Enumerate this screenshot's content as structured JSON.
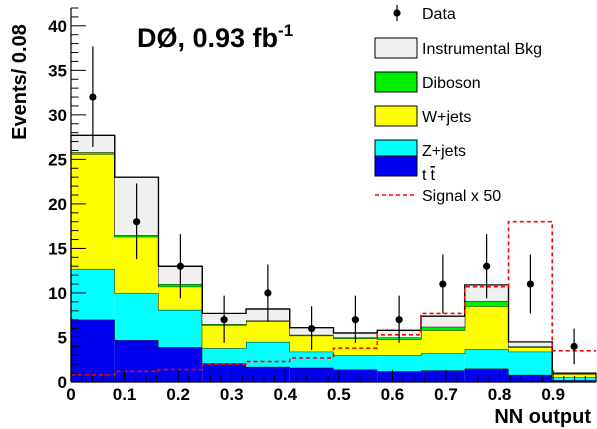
{
  "chart_data": {
    "type": "bar",
    "title": "DØ, 0.93 fb",
    "title_superscript": "-1",
    "xlabel": "NN output",
    "ylabel": "Events/ 0.08",
    "xlim": [
      0,
      0.98
    ],
    "ylim": [
      0,
      42
    ],
    "bin_edges": [
      0.0,
      0.0817,
      0.1633,
      0.245,
      0.3267,
      0.4083,
      0.49,
      0.5717,
      0.6533,
      0.735,
      0.8167,
      0.8983,
      0.98
    ],
    "x_tick_labels": [
      "0",
      "0.1",
      "0.2",
      "0.3",
      "0.4",
      "0.5",
      "0.6",
      "0.7",
      "0.8",
      "0.9"
    ],
    "x_tick_values": [
      0,
      0.1,
      0.2,
      0.3,
      0.4,
      0.5,
      0.6,
      0.7,
      0.8,
      0.9
    ],
    "y_tick_labels": [
      "0",
      "5",
      "10",
      "15",
      "20",
      "25",
      "30",
      "35",
      "40"
    ],
    "y_tick_values": [
      0,
      5,
      10,
      15,
      20,
      25,
      30,
      35,
      40
    ],
    "series": [
      {
        "name": "t",
        "name_overbar": "t",
        "color": "#0000ee",
        "values": [
          7.0,
          4.7,
          3.9,
          2.1,
          1.7,
          1.6,
          1.4,
          1.2,
          1.3,
          1.5,
          0.8,
          0.2
        ]
      },
      {
        "name": "Z+jets",
        "color": "#00ffff",
        "values": [
          5.7,
          5.3,
          4.2,
          1.7,
          2.8,
          1.8,
          1.6,
          1.8,
          1.9,
          2.2,
          2.6,
          0.3
        ]
      },
      {
        "name": "W+jets",
        "color": "#ffff00",
        "values": [
          12.9,
          6.3,
          2.6,
          2.6,
          2.3,
          1.8,
          1.9,
          1.8,
          2.6,
          4.8,
          0.5,
          0.4
        ]
      },
      {
        "name": "Diboson",
        "color": "#00ee00",
        "values": [
          0.2,
          0.2,
          0.3,
          0.1,
          0.1,
          0.1,
          0.1,
          0.2,
          0.4,
          0.6,
          0.1,
          0.0
        ]
      },
      {
        "name": "Instrumental Bkg",
        "color": "#f0f0f0",
        "values": [
          1.9,
          6.5,
          2.0,
          1.2,
          1.3,
          0.8,
          0.5,
          0.8,
          1.2,
          1.8,
          0.5,
          0.1
        ]
      }
    ],
    "data_points": {
      "name": "Data",
      "values": [
        32,
        18,
        13,
        7,
        10,
        6,
        7,
        7,
        11,
        13,
        11,
        4
      ],
      "err_low": [
        5.6,
        4.2,
        3.6,
        2.6,
        3.2,
        2.4,
        2.6,
        2.6,
        3.3,
        3.6,
        3.3,
        2.0
      ],
      "err_high": [
        5.7,
        4.3,
        3.6,
        2.7,
        3.2,
        2.5,
        2.7,
        2.7,
        3.3,
        3.6,
        3.3,
        2.0
      ]
    },
    "signal": {
      "name": "Signal x 50",
      "color": "#ff0000",
      "values": [
        0.8,
        1.2,
        1.4,
        2.0,
        2.3,
        2.7,
        3.8,
        5.3,
        7.7,
        10.7,
        18.0,
        3.5
      ]
    },
    "legend_position": "top-right",
    "grid": false
  }
}
